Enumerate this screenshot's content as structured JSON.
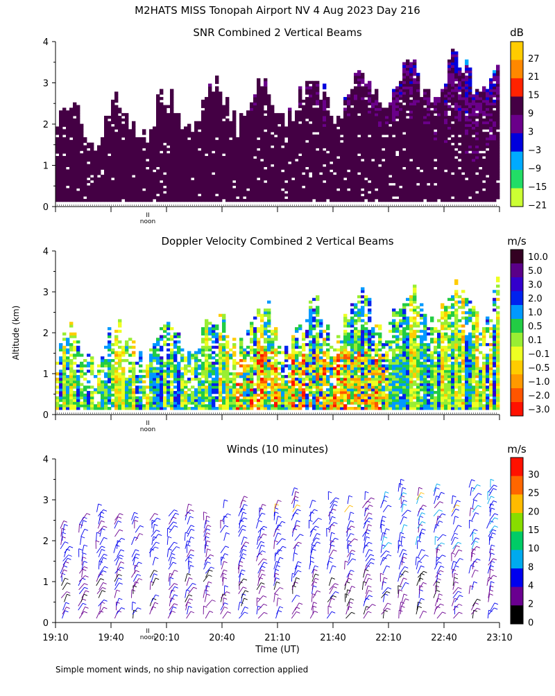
{
  "page": {
    "title": "M2HATS MISS Tonopah Airport NV   4 Aug 2023 Day 216",
    "footnote": "Simple moment winds, no ship navigation correction applied",
    "y_axis_label": "Altitude (km)",
    "x_axis_label": "Time (UT)",
    "noon_label": "noon",
    "noon_marker": "II"
  },
  "chart_data": [
    {
      "type": "heatmap",
      "title": "SNR Combined 2 Vertical Beams",
      "unit": "dB",
      "ylim": [
        0,
        4
      ],
      "yticks": [
        "0",
        "1",
        "2",
        "3",
        "4"
      ],
      "colorbar_labels": [
        "27",
        "21",
        "15",
        "9",
        "3",
        "−3",
        "−9",
        "−15",
        "−21"
      ],
      "colors": [
        "#ffcc00",
        "#ff8800",
        "#ff2200",
        "#440044",
        "#6a008a",
        "#0000dd",
        "#00aaff",
        "#22dd66",
        "#ccff33"
      ]
    },
    {
      "type": "heatmap",
      "title": "Doppler Velocity Combined 2 Vertical Beams",
      "unit": "m/s",
      "ylim": [
        0,
        4
      ],
      "yticks": [
        "0",
        "1",
        "2",
        "3",
        "4"
      ],
      "colorbar_labels": [
        "10.0",
        "5.0",
        "3.0",
        "2.0",
        "1.0",
        "0.5",
        "0.1",
        "−0.1",
        "−0.5",
        "−1.0",
        "−2.0",
        "−3.0"
      ],
      "colors": [
        "#330022",
        "#5a0088",
        "#3300cc",
        "#0022ee",
        "#0099ff",
        "#22cc44",
        "#99ee33",
        "#eeff22",
        "#ffcc00",
        "#ff9900",
        "#ff5500",
        "#ff1100"
      ]
    },
    {
      "type": "scatter",
      "title": "Winds (10 minutes)",
      "unit": "m/s",
      "ylim": [
        0,
        4
      ],
      "yticks": [
        "0",
        "1",
        "2",
        "3",
        "4"
      ],
      "colorbar_labels": [
        "30",
        "25",
        "20",
        "15",
        "10",
        "8",
        "4",
        "2",
        "0"
      ],
      "colors": [
        "#ff1100",
        "#ff6600",
        "#ffbb00",
        "#88dd00",
        "#00cc66",
        "#00aaee",
        "#0000ee",
        "#6a0090",
        "#000000"
      ],
      "xlim": [
        "19:10",
        "23:10"
      ],
      "x": [
        "19:10",
        "19:40",
        "20:10",
        "20:40",
        "21:10",
        "21:40",
        "22:10",
        "22:40",
        "23:10"
      ]
    }
  ]
}
